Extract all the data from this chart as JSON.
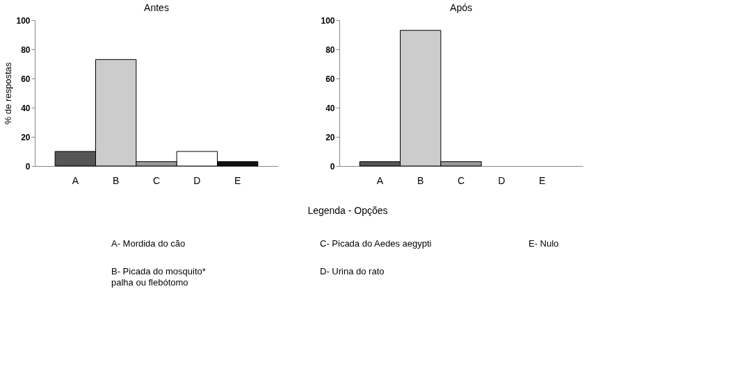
{
  "chart_data": [
    {
      "type": "bar",
      "title": "Antes",
      "ylabel": "% de respostas",
      "categories": [
        "A",
        "B",
        "C",
        "D",
        "E"
      ],
      "values": [
        10,
        73,
        3,
        10,
        3
      ],
      "colors": [
        "#555555",
        "#cccccc",
        "#999999",
        "#ffffff",
        "#111111"
      ],
      "ylim": [
        0,
        100
      ],
      "yticks": [
        0,
        20,
        40,
        60,
        80,
        100
      ],
      "grid": false
    },
    {
      "type": "bar",
      "title": "Após",
      "categories": [
        "A",
        "B",
        "C",
        "D",
        "E"
      ],
      "values": [
        3,
        93,
        3,
        0,
        0
      ],
      "colors": [
        "#555555",
        "#cccccc",
        "#999999",
        "#ffffff",
        "#111111"
      ],
      "ylim": [
        0,
        100
      ],
      "yticks": [
        0,
        20,
        40,
        60,
        80,
        100
      ],
      "grid": false
    },
    {
      "type": "other",
      "title": "Legenda - Opções",
      "annotations": [
        "A-   Mordida do cão",
        "C- Picada do Aedes aegypti",
        "E- Nulo",
        "B- Picada do mosquito*\n    palha ou flebótomo",
        "D- Urina do rato"
      ]
    }
  ]
}
